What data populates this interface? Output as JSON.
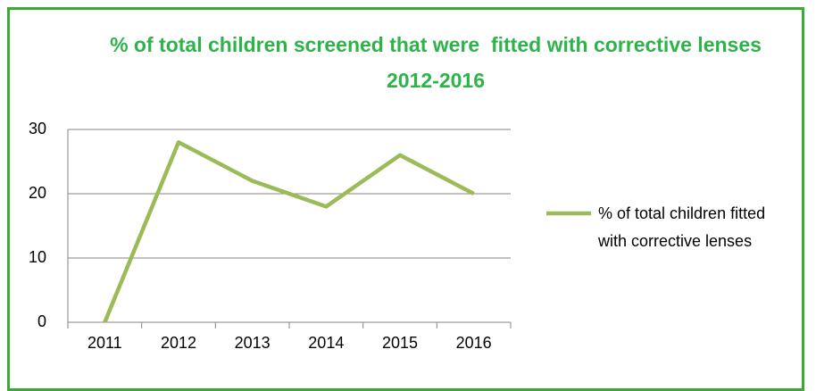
{
  "chart_data": {
    "type": "line",
    "title": "% of total children screened that were  fitted with corrective lenses 2012-2016",
    "categories": [
      "2011",
      "2012",
      "2013",
      "2014",
      "2015",
      "2016"
    ],
    "series": [
      {
        "name": "% of total children fitted with corrective lenses",
        "color": "#9bbb59",
        "values": [
          0,
          28,
          22,
          18,
          26,
          20
        ]
      }
    ],
    "ylim": [
      0,
      30
    ],
    "yticks": [
      0,
      10,
      20,
      30
    ],
    "grid": true,
    "legend": "right"
  }
}
